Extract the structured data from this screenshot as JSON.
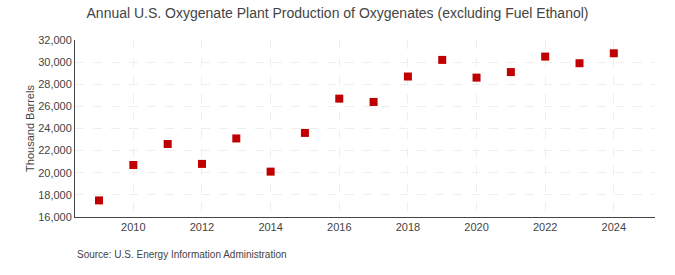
{
  "chart_data": {
    "type": "scatter",
    "title": "Annual U.S. Oxygenate Plant Production of Oxygenates (excluding Fuel Ethanol)",
    "ylabel": "Thousand Barrels",
    "annotations": [
      "Source: U.S. Energy Information Administration"
    ],
    "x": [
      2009,
      2010,
      2011,
      2012,
      2013,
      2014,
      2015,
      2016,
      2017,
      2018,
      2019,
      2020,
      2021,
      2022,
      2023,
      2024
    ],
    "values": [
      17500,
      20700,
      22600,
      20800,
      23100,
      20100,
      23600,
      26700,
      26400,
      28700,
      30200,
      28600,
      29100,
      30500,
      29900,
      30800
    ],
    "color": "#c00000",
    "marker": "square",
    "xlim": [
      2008.3,
      2025.2
    ],
    "xticks": [
      2010,
      2012,
      2014,
      2016,
      2018,
      2020,
      2022,
      2024
    ],
    "ylim": [
      16000,
      32000
    ],
    "yticks": [
      {
        "value": 16000,
        "label": "16,000"
      },
      {
        "value": 18000,
        "label": "18,000"
      },
      {
        "value": 20000,
        "label": "20,000"
      },
      {
        "value": 22000,
        "label": "22,000"
      },
      {
        "value": 24000,
        "label": "24,000"
      },
      {
        "value": 26000,
        "label": "26,000"
      },
      {
        "value": 28000,
        "label": "28,000"
      },
      {
        "value": 30000,
        "label": "30,000"
      },
      {
        "value": 32000,
        "label": "32,000"
      }
    ],
    "grid": true
  }
}
